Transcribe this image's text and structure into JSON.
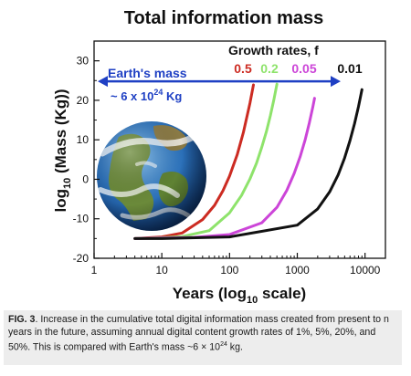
{
  "chart_data": {
    "type": "line",
    "title": "Total information mass",
    "xlabel": "Years (log",
    "xlabel_sub": "10",
    "xlabel_tail": " scale)",
    "ylabel_pre": "log",
    "ylabel_sub": "10",
    "ylabel_tail": " (Mass (Kg))",
    "x_scale": "log10",
    "xlim": [
      1,
      20000
    ],
    "ylim": [
      -20,
      35
    ],
    "x_ticks": [
      1,
      10,
      100,
      1000,
      10000
    ],
    "x_tick_labels": [
      "1",
      "10",
      "100",
      "1000",
      "10000"
    ],
    "y_ticks": [
      -20,
      -10,
      0,
      10,
      20,
      30
    ],
    "y_tick_labels": [
      "-20",
      "-10",
      "0",
      "10",
      "20",
      "30"
    ],
    "grid": false,
    "legend_title": "Growth rates, f",
    "series": [
      {
        "name": "0.5",
        "color": "#cc2b22",
        "x": [
          4,
          10,
          20,
          40,
          60,
          80,
          100,
          130,
          160,
          200,
          225
        ],
        "y": [
          -15,
          -14.6,
          -13.6,
          -10.2,
          -6.6,
          -2.9,
          0.8,
          6.3,
          11.9,
          19.3,
          23.9
        ]
      },
      {
        "name": "0.2",
        "color": "#8ee36b",
        "x": [
          4,
          10,
          20,
          50,
          100,
          150,
          200,
          250,
          300,
          350,
          400,
          450,
          500
        ],
        "y": [
          -15,
          -14.8,
          -14.5,
          -13.0,
          -8.5,
          -4.1,
          0.1,
          4.1,
          8.2,
          12.1,
          16.1,
          20.1,
          24.1
        ]
      },
      {
        "name": "0.05",
        "color": "#cc45d8",
        "x": [
          4,
          10,
          30,
          100,
          300,
          500,
          700,
          900,
          1100,
          1300,
          1500,
          1700,
          1800
        ],
        "y": [
          -15,
          -14.9,
          -14.7,
          -14.0,
          -11.0,
          -7.1,
          -2.8,
          1.5,
          5.7,
          9.9,
          14.2,
          18.4,
          20.5
        ]
      },
      {
        "name": "0.01",
        "color": "#111111",
        "x": [
          4,
          10,
          100,
          1000,
          2000,
          3000,
          4000,
          5000,
          6000,
          7000,
          8000,
          9000
        ],
        "y": [
          -15,
          -15,
          -14.6,
          -11.6,
          -7.5,
          -3.2,
          1.1,
          5.4,
          9.8,
          14.1,
          18.4,
          22.7
        ]
      }
    ],
    "reference": {
      "label": "Earth's mass",
      "value_text_pre": "~ 6 x 10",
      "value_text_sup": "24",
      "value_text_tail": " Kg",
      "y": 24.8,
      "color": "#1f40c4"
    }
  },
  "caption": {
    "label": "FIG. 3",
    "text_1": ". Increase in the cumulative total digital information mass created from present to n years in the future, assuming annual digital content growth rates of 1%, 5%, 20%, and 50%. This is compared with Earth's mass ~6 × 10",
    "sup": "24",
    "text_2": " kg."
  },
  "image": {
    "name": "earth-globe",
    "colors": {
      "ocean": "#2a6fb8",
      "land": "#6b8a3a",
      "cloud": "#ffffff"
    }
  }
}
